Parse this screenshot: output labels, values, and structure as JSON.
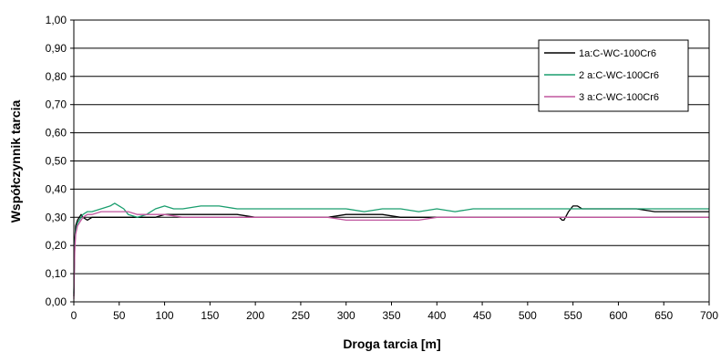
{
  "chart_data": {
    "type": "line",
    "title": "",
    "xlabel": "Droga tarcia [m]",
    "ylabel": "Współczynnik tarcia",
    "xlim": [
      0,
      700
    ],
    "ylim": [
      0,
      1
    ],
    "x_ticks": [
      "0",
      "50",
      "100",
      "150",
      "200",
      "250",
      "300",
      "350",
      "400",
      "450",
      "500",
      "550",
      "600",
      "650",
      "700"
    ],
    "y_ticks": [
      "0,00",
      "0,10",
      "0,20",
      "0,30",
      "0,40",
      "0,50",
      "0,60",
      "0,70",
      "0,80",
      "0,90",
      "1,00"
    ],
    "grid": "horizontal",
    "legend_position": "top-right",
    "series": [
      {
        "name": "1a:C-WC-100Cr6",
        "color": "#000000",
        "x": [
          0,
          1,
          2,
          4,
          6,
          8,
          10,
          15,
          20,
          30,
          40,
          50,
          60,
          70,
          80,
          90,
          100,
          120,
          140,
          160,
          180,
          200,
          220,
          240,
          260,
          280,
          300,
          320,
          340,
          360,
          380,
          400,
          420,
          440,
          460,
          480,
          500,
          520,
          535,
          538,
          540,
          545,
          550,
          555,
          560,
          580,
          600,
          620,
          640,
          660,
          680,
          700
        ],
        "y": [
          0.02,
          0.22,
          0.27,
          0.29,
          0.3,
          0.31,
          0.3,
          0.29,
          0.3,
          0.3,
          0.3,
          0.3,
          0.3,
          0.3,
          0.3,
          0.3,
          0.31,
          0.31,
          0.31,
          0.31,
          0.31,
          0.3,
          0.3,
          0.3,
          0.3,
          0.3,
          0.31,
          0.31,
          0.31,
          0.3,
          0.3,
          0.3,
          0.3,
          0.3,
          0.3,
          0.3,
          0.3,
          0.3,
          0.3,
          0.29,
          0.29,
          0.32,
          0.34,
          0.34,
          0.33,
          0.33,
          0.33,
          0.33,
          0.32,
          0.32,
          0.32,
          0.32
        ]
      },
      {
        "name": "2 a:C-WC-100Cr6",
        "color": "#1a9e6e",
        "x": [
          0,
          1,
          2,
          4,
          6,
          8,
          10,
          15,
          20,
          30,
          40,
          45,
          50,
          55,
          60,
          70,
          80,
          90,
          100,
          110,
          120,
          140,
          150,
          160,
          180,
          200,
          220,
          240,
          260,
          280,
          300,
          320,
          340,
          360,
          380,
          400,
          420,
          440,
          460,
          480,
          500,
          520,
          540,
          560,
          580,
          600,
          620,
          640,
          660,
          680,
          700
        ],
        "y": [
          0.03,
          0.2,
          0.25,
          0.28,
          0.29,
          0.3,
          0.31,
          0.32,
          0.32,
          0.33,
          0.34,
          0.35,
          0.34,
          0.33,
          0.31,
          0.3,
          0.31,
          0.33,
          0.34,
          0.33,
          0.33,
          0.34,
          0.34,
          0.34,
          0.33,
          0.33,
          0.33,
          0.33,
          0.33,
          0.33,
          0.33,
          0.32,
          0.33,
          0.33,
          0.32,
          0.33,
          0.32,
          0.33,
          0.33,
          0.33,
          0.33,
          0.33,
          0.33,
          0.33,
          0.33,
          0.33,
          0.33,
          0.33,
          0.33,
          0.33,
          0.33
        ]
      },
      {
        "name": "3 a:C-WC-100Cr6",
        "color": "#c0569e",
        "x": [
          0,
          1,
          2,
          4,
          6,
          8,
          10,
          15,
          20,
          30,
          40,
          50,
          60,
          70,
          80,
          90,
          100,
          120,
          140,
          160,
          180,
          200,
          220,
          240,
          260,
          280,
          300,
          320,
          340,
          360,
          380,
          400,
          420,
          440,
          460,
          480,
          500,
          520,
          540,
          560,
          580,
          600,
          620,
          640,
          660,
          680,
          700
        ],
        "y": [
          0.01,
          0.18,
          0.24,
          0.27,
          0.28,
          0.29,
          0.3,
          0.31,
          0.31,
          0.32,
          0.32,
          0.32,
          0.32,
          0.31,
          0.31,
          0.31,
          0.31,
          0.3,
          0.3,
          0.3,
          0.3,
          0.3,
          0.3,
          0.3,
          0.3,
          0.3,
          0.29,
          0.29,
          0.29,
          0.29,
          0.29,
          0.3,
          0.3,
          0.3,
          0.3,
          0.3,
          0.3,
          0.3,
          0.3,
          0.3,
          0.3,
          0.3,
          0.3,
          0.3,
          0.3,
          0.3,
          0.3
        ]
      }
    ]
  }
}
